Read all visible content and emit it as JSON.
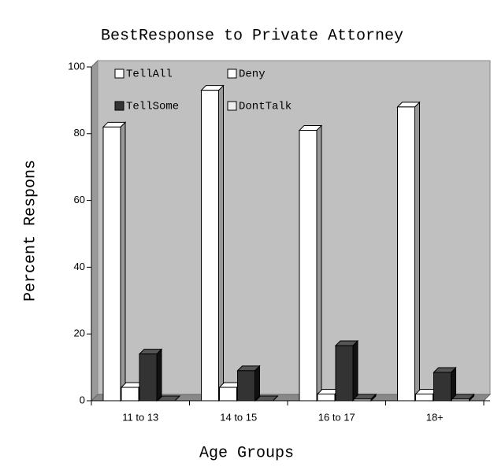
{
  "chart_data": {
    "type": "bar3d",
    "title": "BestResponse to Private Attorney",
    "x_label": "Age Groups",
    "y_label": "Percent Respons",
    "categories": [
      "11 to 13",
      "14 to 15",
      "16 to 17",
      "18+"
    ],
    "series": [
      {
        "name": "TellAll",
        "color": "#ffffff",
        "values": [
          82,
          93,
          81,
          88
        ]
      },
      {
        "name": "Deny",
        "color": "#ffffff",
        "values": [
          4,
          4,
          2,
          2
        ]
      },
      {
        "name": "TellSome",
        "color": "#333333",
        "values": [
          14,
          9,
          16.5,
          8.5
        ]
      },
      {
        "name": "DontTalk",
        "color": "#d9d9d9",
        "values": [
          0,
          0,
          0.5,
          0.5
        ]
      }
    ],
    "ylim": [
      0,
      100
    ],
    "yticks": [
      0,
      20,
      40,
      60,
      80,
      100
    ],
    "wall_color": "#c0c0c0"
  }
}
